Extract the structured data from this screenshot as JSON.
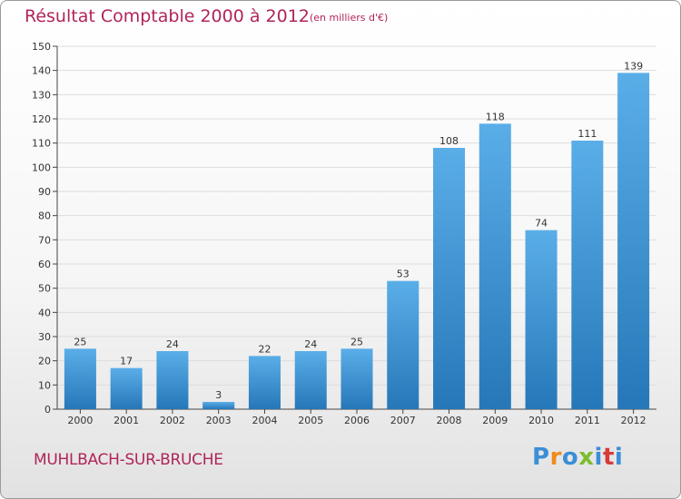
{
  "header": {
    "title": "Résultat Comptable 2000 à 2012",
    "subtitle": "(en milliers d'€)"
  },
  "footer": {
    "commune": "MUHLBACH-SUR-BRUCHE",
    "logo_letters": [
      "P",
      "r",
      "o",
      "x",
      "i",
      "t",
      "i"
    ],
    "logo_colors": [
      "#3a8fd6",
      "#f08a1c",
      "#3a8fd6",
      "#7cbd2e",
      "#3a8fd6",
      "#d63a3a",
      "#3a8fd6"
    ]
  },
  "colors": {
    "bar_top": "#5aaee8",
    "bar_bottom": "#2677b8",
    "title": "#b0245a",
    "grid": "#dddddd"
  },
  "chart_data": {
    "type": "bar",
    "categories": [
      "2000",
      "2001",
      "2002",
      "2003",
      "2004",
      "2005",
      "2006",
      "2007",
      "2008",
      "2009",
      "2010",
      "2011",
      "2012"
    ],
    "values": [
      25,
      17,
      24,
      3,
      22,
      24,
      25,
      53,
      108,
      118,
      74,
      111,
      139
    ],
    "title": "Résultat Comptable 2000 à 2012",
    "subtitle": "(en milliers d'€)",
    "ylim": [
      0,
      150
    ],
    "yticks": [
      0,
      10,
      20,
      30,
      40,
      50,
      60,
      70,
      80,
      90,
      100,
      110,
      120,
      130,
      140,
      150
    ],
    "grid": true,
    "data_labels": true
  }
}
